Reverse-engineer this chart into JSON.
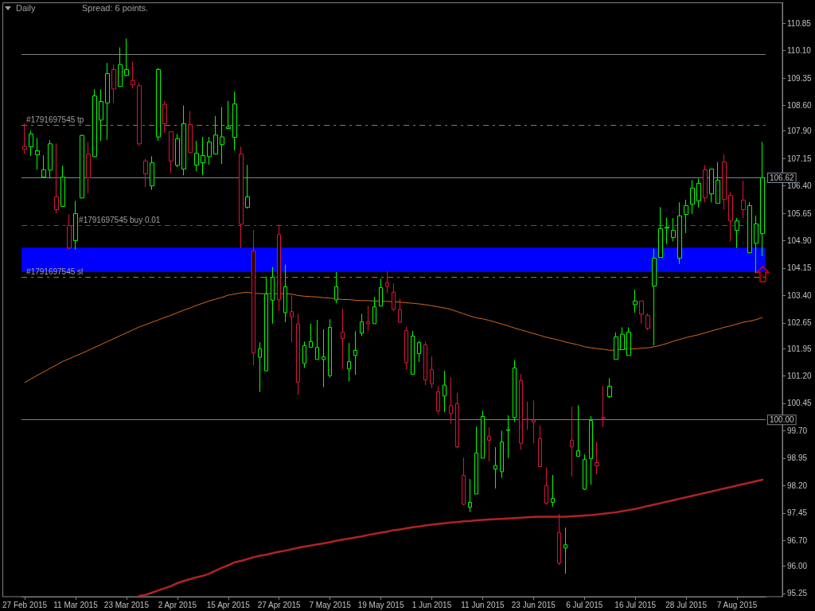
{
  "chart_data": {
    "type": "candlestick",
    "title": "Daily",
    "subtitle": "Spread: 6 points.",
    "categories": [
      "27 Feb 2015",
      null,
      null,
      null,
      null,
      null,
      null,
      null,
      "11 Mar 2015",
      null,
      null,
      null,
      null,
      null,
      null,
      null,
      "23 Mar 2015",
      null,
      null,
      null,
      null,
      null,
      null,
      null,
      "2 Apr 2015",
      null,
      null,
      null,
      null,
      null,
      null,
      null,
      "15 Apr 2015",
      null,
      null,
      null,
      null,
      null,
      null,
      null,
      "27 Apr 2015",
      null,
      null,
      null,
      null,
      null,
      null,
      null,
      "7 May 2015",
      null,
      null,
      null,
      null,
      null,
      null,
      null,
      "19 May 2015",
      null,
      null,
      null,
      null,
      null,
      null,
      null,
      "1 Jun 2015",
      null,
      null,
      null,
      null,
      null,
      null,
      null,
      "11 Jun 2015",
      null,
      null,
      null,
      null,
      null,
      null,
      null,
      "23 Jun 2015",
      null,
      null,
      null,
      null,
      null,
      null,
      null,
      "6 Jul 2015",
      null,
      null,
      null,
      null,
      null,
      null,
      null,
      "16 Jul 2015",
      null,
      null,
      null,
      null,
      null,
      null,
      null,
      "28 Jul 2015",
      null,
      null,
      null,
      null,
      null,
      null,
      null,
      "7 Aug 2015",
      null,
      null,
      null,
      null
    ],
    "ohlc": [
      [
        107.48,
        108.11,
        107.27,
        107.4
      ],
      [
        107.47,
        107.91,
        107.22,
        107.82
      ],
      [
        107.25,
        107.71,
        106.84,
        107.36
      ],
      [
        106.64,
        107.24,
        106.62,
        106.84
      ],
      [
        106.83,
        107.65,
        106.6,
        107.55
      ],
      [
        106.1,
        107.56,
        105.65,
        105.75
      ],
      [
        105.84,
        106.95,
        105.82,
        106.64
      ],
      [
        105.31,
        105.62,
        104.66,
        104.7
      ],
      [
        104.9,
        105.99,
        104.66,
        105.64
      ],
      [
        106.07,
        107.8,
        106.06,
        107.78
      ],
      [
        107.27,
        107.6,
        106.2,
        106.62
      ],
      [
        107.2,
        109.04,
        107.19,
        108.86
      ],
      [
        108.2,
        109.04,
        107.63,
        108.71
      ],
      [
        108.67,
        109.76,
        107.66,
        109.47
      ],
      [
        109.58,
        109.72,
        108.67,
        109.05
      ],
      [
        109.12,
        110.19,
        109.11,
        109.72
      ],
      [
        109.42,
        110.43,
        109.4,
        109.58
      ],
      [
        109.28,
        109.8,
        109.07,
        109.17
      ],
      [
        109.14,
        109.23,
        107.5,
        107.55
      ],
      [
        107.08,
        107.14,
        106.36,
        106.73
      ],
      [
        106.4,
        107.21,
        106.29,
        107.03
      ],
      [
        107.74,
        109.63,
        107.63,
        109.58
      ],
      [
        108.63,
        108.72,
        107.85,
        108.1
      ],
      [
        107.88,
        107.89,
        106.75,
        107.08
      ],
      [
        106.96,
        107.82,
        106.91,
        107.69
      ],
      [
        106.86,
        108.6,
        106.69,
        108.1
      ],
      [
        108.08,
        108.45,
        107.3,
        107.31
      ],
      [
        106.97,
        107.63,
        106.8,
        107.29
      ],
      [
        107.03,
        107.74,
        106.69,
        107.23
      ],
      [
        107.2,
        107.74,
        106.98,
        107.6
      ],
      [
        107.27,
        108.31,
        107.26,
        107.79
      ],
      [
        107.53,
        108.56,
        107.0,
        107.74
      ],
      [
        107.97,
        108.72,
        107.97,
        108.01
      ],
      [
        107.73,
        108.98,
        107.37,
        108.64
      ],
      [
        107.27,
        107.47,
        104.7,
        105.35
      ],
      [
        105.81,
        106.97,
        105.78,
        106.1
      ],
      [
        104.62,
        105.19,
        101.49,
        101.83
      ],
      [
        101.71,
        102.12,
        100.76,
        101.94
      ],
      [
        101.34,
        103.92,
        101.34,
        103.44
      ],
      [
        103.27,
        104.18,
        102.63,
        103.9
      ],
      [
        105.07,
        105.34,
        102.98,
        103.28
      ],
      [
        102.93,
        104.25,
        102.67,
        103.64
      ],
      [
        102.96,
        103.41,
        102.12,
        102.81
      ],
      [
        102.62,
        102.9,
        100.68,
        101.03
      ],
      [
        101.54,
        102.14,
        101.42,
        102.03
      ],
      [
        101.98,
        102.63,
        101.98,
        102.14
      ],
      [
        101.65,
        102.73,
        101.65,
        101.98
      ],
      [
        101.65,
        102.48,
        100.89,
        101.72
      ],
      [
        101.21,
        102.75,
        101.16,
        102.53
      ],
      [
        103.28,
        104.04,
        103.19,
        103.64
      ],
      [
        102.4,
        103.04,
        101.39,
        102.22
      ],
      [
        101.39,
        102.1,
        101.05,
        101.59
      ],
      [
        101.76,
        102.42,
        101.23,
        101.9
      ],
      [
        102.37,
        102.9,
        102.29,
        102.68
      ],
      [
        102.68,
        103.12,
        102.43,
        102.63
      ],
      [
        102.63,
        103.36,
        102.63,
        103.09
      ],
      [
        103.11,
        103.86,
        103.11,
        103.62
      ],
      [
        103.75,
        104.06,
        103.46,
        103.65
      ],
      [
        103.49,
        103.73,
        102.98,
        103.02
      ],
      [
        103.01,
        103.32,
        102.65,
        102.67
      ],
      [
        102.44,
        102.54,
        101.38,
        101.56
      ],
      [
        101.24,
        102.43,
        101.24,
        102.29
      ],
      [
        101.81,
        102.16,
        101.58,
        102.11
      ],
      [
        102.05,
        102.14,
        100.95,
        101.09
      ],
      [
        101.37,
        101.73,
        100.87,
        100.98
      ],
      [
        100.77,
        100.92,
        100.15,
        100.24
      ],
      [
        100.65,
        101.34,
        100.21,
        100.95
      ],
      [
        100.39,
        101.16,
        99.89,
        100.17
      ],
      [
        100.44,
        100.74,
        99.22,
        99.26
      ],
      [
        98.48,
        98.96,
        97.66,
        97.69
      ],
      [
        97.61,
        98.38,
        97.48,
        97.74
      ],
      [
        97.97,
        99.81,
        97.97,
        99.09
      ],
      [
        98.95,
        100.25,
        98.95,
        100.09
      ],
      [
        99.55,
        99.79,
        98.86,
        99.44
      ],
      [
        98.65,
        99.25,
        98.12,
        98.75
      ],
      [
        98.58,
        99.7,
        98.41,
        99.39
      ],
      [
        99.71,
        100.12,
        98.95,
        99.73
      ],
      [
        100.06,
        101.64,
        99.94,
        101.42
      ],
      [
        101.07,
        101.25,
        99.18,
        99.36
      ],
      [
        100.02,
        100.5,
        99.73,
        100.0
      ],
      [
        99.99,
        100.53,
        99.36,
        99.94
      ],
      [
        99.48,
        99.84,
        98.71,
        98.72
      ],
      [
        98.2,
        98.7,
        97.67,
        97.72
      ],
      [
        97.74,
        98.49,
        97.62,
        97.85
      ],
      [
        96.91,
        97.42,
        96.02,
        96.08
      ],
      [
        96.49,
        97.05,
        95.79,
        96.58
      ],
      [
        99.44,
        100.36,
        98.45,
        99.26
      ],
      [
        99.0,
        100.4,
        99.0,
        99.15
      ],
      [
        98.1,
        99.05,
        98.08,
        98.91
      ],
      [
        98.94,
        100.1,
        98.22,
        99.98
      ],
      [
        98.83,
        99.4,
        98.51,
        98.74
      ],
      [
        100.06,
        100.92,
        99.8,
        100.04
      ],
      [
        100.63,
        101.14,
        100.6,
        100.92
      ],
      [
        101.65,
        102.39,
        101.65,
        102.27
      ],
      [
        101.92,
        102.53,
        101.92,
        102.34
      ],
      [
        101.76,
        102.53,
        101.76,
        102.4
      ],
      [
        103.15,
        103.56,
        102.93,
        103.25
      ],
      [
        103.25,
        103.26,
        102.63,
        102.89
      ],
      [
        102.85,
        102.92,
        102.45,
        102.5
      ],
      [
        103.66,
        104.68,
        102.03,
        104.42
      ],
      [
        104.44,
        105.82,
        104.44,
        105.23
      ],
      [
        105.24,
        105.53,
        104.81,
        105.27
      ],
      [
        104.99,
        105.52,
        104.88,
        105.18
      ],
      [
        104.42,
        105.95,
        104.26,
        105.58
      ],
      [
        105.62,
        106.02,
        105.11,
        105.86
      ],
      [
        105.9,
        106.56,
        105.63,
        106.34
      ],
      [
        105.99,
        106.6,
        105.81,
        106.47
      ],
      [
        106.84,
        106.97,
        105.95,
        106.07
      ],
      [
        106.18,
        106.87,
        105.95,
        106.86
      ],
      [
        105.92,
        107.05,
        105.92,
        106.55
      ],
      [
        107.05,
        107.26,
        105.76,
        106.03
      ],
      [
        106.14,
        106.23,
        104.88,
        105.44
      ],
      [
        105.18,
        105.52,
        104.7,
        105.44
      ],
      [
        106.01,
        106.54,
        105.52,
        105.75
      ],
      [
        104.57,
        105.95,
        104.55,
        105.86
      ],
      [
        104.83,
        105.59,
        104.01,
        105.36
      ],
      [
        105.1,
        107.6,
        104.48,
        106.62
      ]
    ],
    "colors": [
      "#dc143c",
      "#00ff00",
      "#00ff00",
      "#00ff00",
      "#00ff00",
      "#dc143c",
      "#00ff00",
      "#dc143c",
      "#00ff00",
      "#00ff00",
      "#dc143c",
      "#00ff00",
      "#00ff00",
      "#00ff00",
      "#dc143c",
      "#00ff00",
      "#00ff00",
      "#dc143c",
      "#dc143c",
      "#dc143c",
      "#00ff00",
      "#00ff00",
      "#dc143c",
      "#dc143c",
      "#00ff00",
      "#00ff00",
      "#dc143c",
      "#00ff00",
      "#00ff00",
      "#00ff00",
      "#00ff00",
      "#00ff00",
      "#00ff00",
      "#00ff00",
      "#dc143c",
      "#00ff00",
      "#dc143c",
      "#00ff00",
      "#00ff00",
      "#00ff00",
      "#dc143c",
      "#00ff00",
      "#dc143c",
      "#dc143c",
      "#00ff00",
      "#00ff00",
      "#00ff00",
      "#00ff00",
      "#00ff00",
      "#00ff00",
      "#dc143c",
      "#00ff00",
      "#00ff00",
      "#00ff00",
      "#dc143c",
      "#00ff00",
      "#00ff00",
      "#dc143c",
      "#dc143c",
      "#dc143c",
      "#dc143c",
      "#00ff00",
      "#00ff00",
      "#dc143c",
      "#dc143c",
      "#dc143c",
      "#00ff00",
      "#dc143c",
      "#dc143c",
      "#dc143c",
      "#00ff00",
      "#00ff00",
      "#00ff00",
      "#dc143c",
      "#00ff00",
      "#00ff00",
      "#00ff00",
      "#00ff00",
      "#dc143c",
      "#dc143c",
      "#dc143c",
      "#dc143c",
      "#dc143c",
      "#00ff00",
      "#dc143c",
      "#00ff00",
      "#dc143c",
      "#00ff00",
      "#00ff00",
      "#00ff00",
      "#dc143c",
      "#dc143c",
      "#00ff00",
      "#00ff00",
      "#00ff00",
      "#00ff00",
      "#00ff00",
      "#dc143c",
      "#dc143c",
      "#00ff00",
      "#00ff00",
      "#00ff00",
      "#00ff00",
      "#00ff00",
      "#00ff00",
      "#00ff00",
      "#00ff00",
      "#dc143c",
      "#00ff00",
      "#00ff00",
      "#dc143c",
      "#dc143c",
      "#00ff00",
      "#dc143c",
      "#00ff00",
      "#00ff00",
      "#00ff00"
    ],
    "series": [
      {
        "type": "line",
        "color": "#d2691e",
        "values": [
          101.02,
          101.12,
          101.22,
          101.31,
          101.41,
          101.5,
          101.6,
          101.67,
          101.75,
          101.82,
          101.9,
          101.98,
          102.06,
          102.14,
          102.22,
          102.3,
          102.38,
          102.46,
          102.54,
          102.6,
          102.67,
          102.73,
          102.8,
          102.86,
          102.93,
          103.0,
          103.06,
          103.13,
          103.19,
          103.25,
          103.3,
          103.35,
          103.41,
          103.44,
          103.47,
          103.49,
          103.46,
          103.45,
          103.45,
          103.45,
          103.45,
          103.45,
          103.44,
          103.4,
          103.38,
          103.37,
          103.36,
          103.34,
          103.33,
          103.31,
          103.29,
          103.29,
          103.27,
          103.26,
          103.26,
          103.25,
          103.24,
          103.24,
          103.23,
          103.22,
          103.2,
          103.19,
          103.17,
          103.15,
          103.12,
          103.09,
          103.06,
          103.02,
          102.96,
          102.9,
          102.84,
          102.79,
          102.76,
          102.72,
          102.67,
          102.62,
          102.57,
          102.51,
          102.46,
          102.41,
          102.36,
          102.31,
          102.26,
          102.22,
          102.18,
          102.13,
          102.09,
          102.05,
          102.0,
          101.97,
          101.95,
          101.93,
          101.9,
          101.91,
          101.93,
          101.94,
          101.94,
          101.96,
          101.97,
          102.0,
          102.04,
          102.09,
          102.15,
          102.2,
          102.25,
          102.29,
          102.33,
          102.38,
          102.43,
          102.48,
          102.53,
          102.57,
          102.62,
          102.67,
          102.7,
          102.74,
          102.8
        ]
      },
      {
        "type": "line",
        "color": "#b22222",
        "values": [
          null,
          null,
          null,
          null,
          null,
          null,
          null,
          null,
          null,
          null,
          null,
          null,
          null,
          null,
          null,
          null,
          null,
          null,
          95.18,
          95.21,
          95.27,
          95.33,
          95.39,
          95.45,
          95.53,
          95.59,
          95.64,
          95.69,
          95.73,
          95.79,
          95.87,
          95.95,
          96.02,
          96.1,
          96.14,
          96.19,
          96.24,
          96.28,
          96.31,
          96.35,
          96.39,
          96.42,
          96.46,
          96.5,
          96.53,
          96.56,
          96.59,
          96.62,
          96.65,
          96.69,
          96.72,
          96.75,
          96.78,
          96.81,
          96.85,
          96.88,
          96.91,
          96.94,
          96.98,
          97.0,
          97.03,
          97.06,
          97.08,
          97.11,
          97.13,
          97.15,
          97.17,
          97.19,
          97.2,
          97.22,
          97.23,
          97.25,
          97.26,
          97.27,
          97.28,
          97.29,
          97.3,
          97.31,
          97.32,
          97.33,
          97.34,
          97.35,
          97.35,
          97.35,
          97.35,
          97.35,
          97.36,
          97.37,
          97.38,
          97.39,
          97.41,
          97.43,
          97.45,
          97.47,
          97.5,
          97.53,
          97.56,
          97.6,
          97.64,
          97.68,
          97.72,
          97.76,
          97.8,
          97.84,
          97.88,
          97.92,
          97.96,
          98.0,
          98.04,
          98.08,
          98.12,
          98.16,
          98.2,
          98.24,
          98.28,
          98.32,
          98.36
        ]
      }
    ],
    "ylim": [
      95.16,
      111.42
    ],
    "yticks": [
      95.25,
      {
        "value": 96,
        "label": "96.00"
      },
      {
        "value": 96.7,
        "label": "96.70"
      },
      97.45,
      {
        "value": 98.2,
        "label": "98.20"
      },
      98.95,
      {
        "value": 99.7,
        "label": "99.70"
      },
      100.45,
      {
        "value": 101.2,
        "label": "101.20"
      },
      101.95,
      102.65,
      {
        "value": 103.4,
        "label": "103.40"
      },
      104.15,
      {
        "value": 104.9,
        "label": "104.90"
      },
      105.65,
      {
        "value": 106.4,
        "label": "106.40"
      },
      107.15,
      {
        "value": 107.9,
        "label": "107.90"
      },
      {
        "value": 108.6,
        "label": "108.60"
      },
      109.35,
      {
        "value": 110.1,
        "label": "110.10"
      },
      110.85
    ],
    "ref_lines": [
      {
        "axis": "y",
        "value": 110,
        "color": "#808080",
        "line_style": "solid"
      },
      {
        "axis": "y",
        "value": 108.06,
        "label": "#1791697545 tp",
        "color": "#c8642d",
        "line_style": "dashed"
      },
      {
        "axis": "y",
        "value": 106.62,
        "label": "106.62",
        "color": "#778899",
        "line_style": "solid"
      },
      {
        "axis": "y",
        "value": 105.31,
        "label": "#1791697545 buy 0.01",
        "color": "#1e7a1e",
        "line_style": "dashed"
      },
      {
        "axis": "y",
        "value": 103.9,
        "label": "#1791697545 sl",
        "color": "#c8642d",
        "line_style": "dashed"
      },
      {
        "axis": "y",
        "value": 100,
        "label": "100.00",
        "color": "#808080",
        "line_style": "solid"
      }
    ],
    "bands": [
      {
        "axis": "y",
        "from": 104.04,
        "to": 104.71,
        "color": "#0000ff"
      }
    ]
  }
}
